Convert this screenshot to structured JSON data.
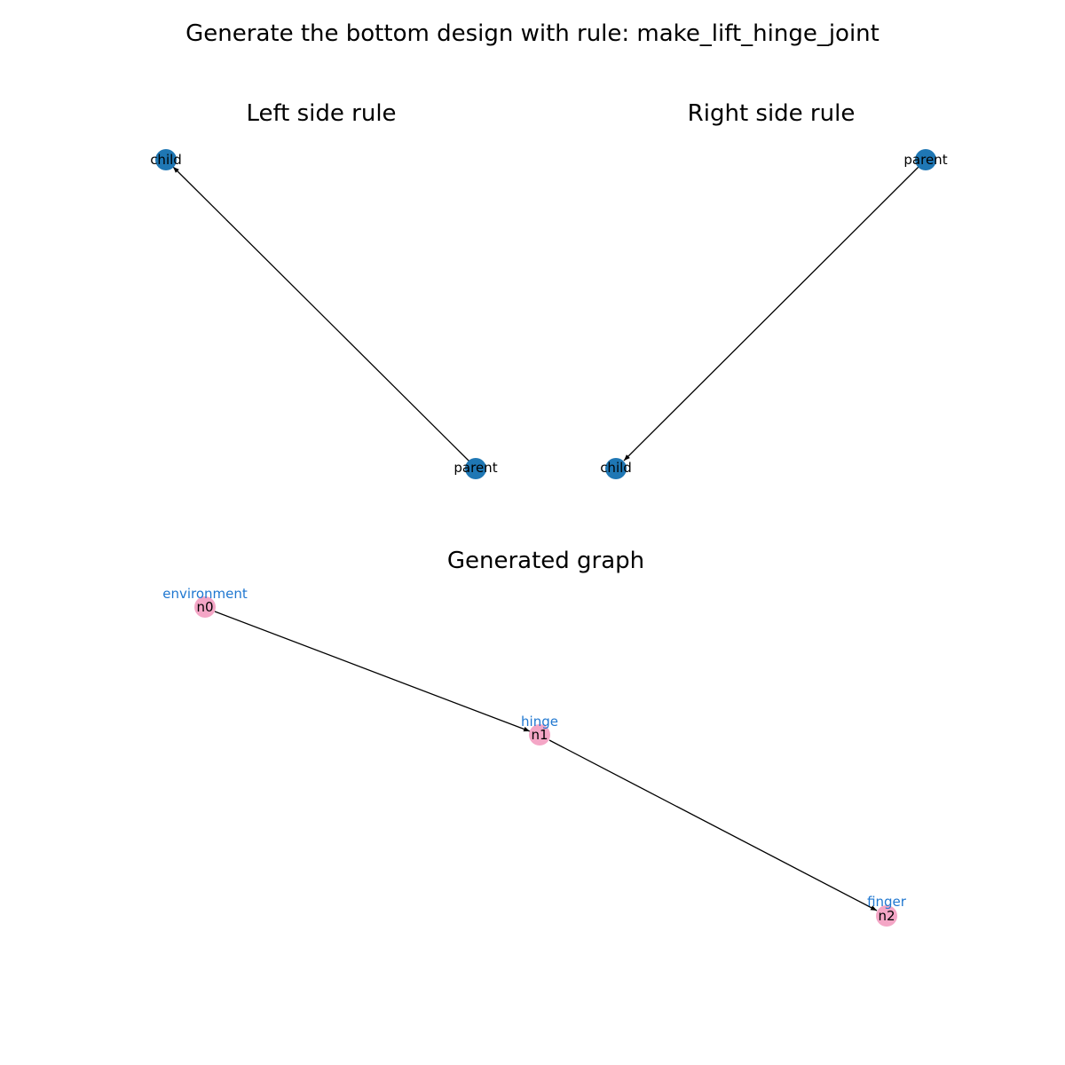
{
  "figure": {
    "title": "Generate the bottom design with rule: make_lift_hinge_joint"
  },
  "left_rule": {
    "title": "Left side rule",
    "node_color": "#1f77b4",
    "nodes": {
      "child": "child",
      "parent": "parent"
    },
    "edge": {
      "from": "parent",
      "to": "child"
    }
  },
  "right_rule": {
    "title": "Right side rule",
    "node_color": "#1f77b4",
    "nodes": {
      "parent": "parent",
      "child": "child"
    },
    "edge": {
      "from": "parent",
      "to": "child"
    }
  },
  "generated": {
    "title": "Generated graph",
    "node_color": "#f4a6c6",
    "type_label_color": "#1f77d0",
    "nodes": {
      "n0": {
        "id": "n0",
        "type": "environment"
      },
      "n1": {
        "id": "n1",
        "type": "hinge"
      },
      "n2": {
        "id": "n2",
        "type": "finger"
      }
    },
    "edges": [
      {
        "from": "n0",
        "to": "n1"
      },
      {
        "from": "n1",
        "to": "n2"
      }
    ]
  }
}
